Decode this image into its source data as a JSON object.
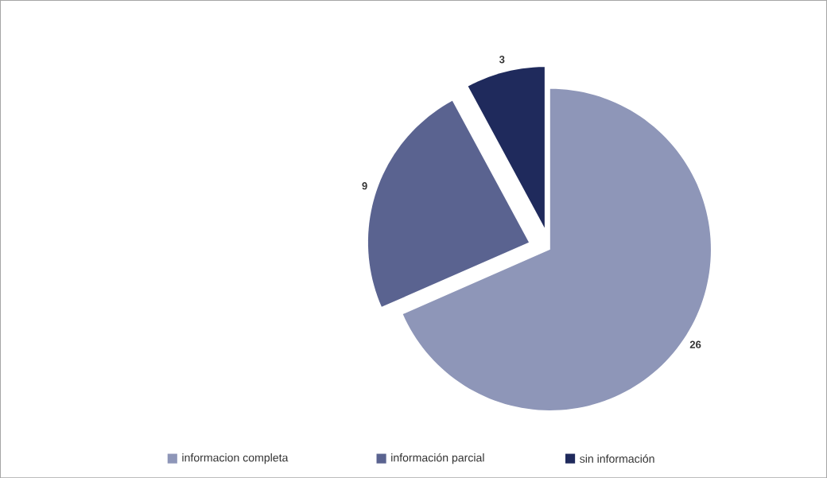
{
  "chart_data": {
    "type": "pie",
    "categories": [
      "informacion completa",
      "información parcial",
      "sin información"
    ],
    "values": [
      26,
      9,
      3
    ],
    "colors": [
      "#8e96b8",
      "#5a6390",
      "#1f2a5c"
    ],
    "data_labels": true,
    "legend": "bottom"
  }
}
